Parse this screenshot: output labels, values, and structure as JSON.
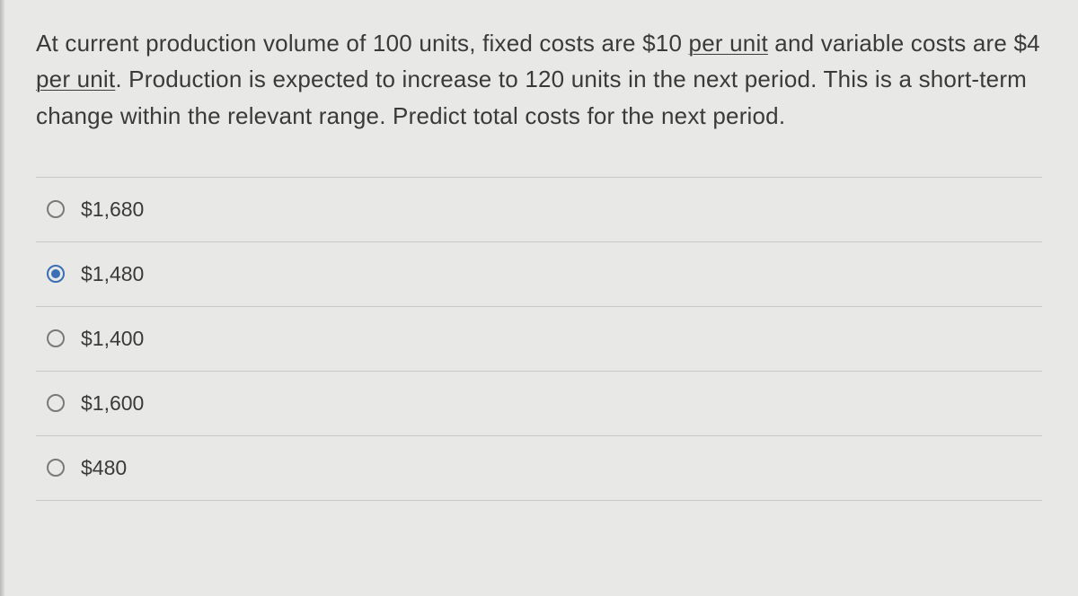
{
  "question": {
    "segments": [
      {
        "text": "At current production volume of 100 units, fixed costs are $10 ",
        "underline": false
      },
      {
        "text": "per unit",
        "underline": true
      },
      {
        "text": " and variable costs are $4 ",
        "underline": false
      },
      {
        "text": "per unit",
        "underline": true
      },
      {
        "text": ". Production is expected to increase to 120 units in the next period. This is a short-term change within the relevant range. Predict total costs for the next period.",
        "underline": false
      }
    ]
  },
  "options": [
    {
      "label": "$1,680",
      "selected": false
    },
    {
      "label": "$1,480",
      "selected": true
    },
    {
      "label": "$1,400",
      "selected": false
    },
    {
      "label": "$1,600",
      "selected": false
    },
    {
      "label": "$480",
      "selected": false
    }
  ],
  "colors": {
    "background": "#e8e8e6",
    "text": "#3a3a3a",
    "border": "#c8c8c6",
    "radio_unselected": "#7a7a78",
    "radio_selected": "#3b6fb5"
  },
  "typography": {
    "question_fontsize": 26,
    "option_fontsize": 23,
    "line_height": 1.55
  }
}
